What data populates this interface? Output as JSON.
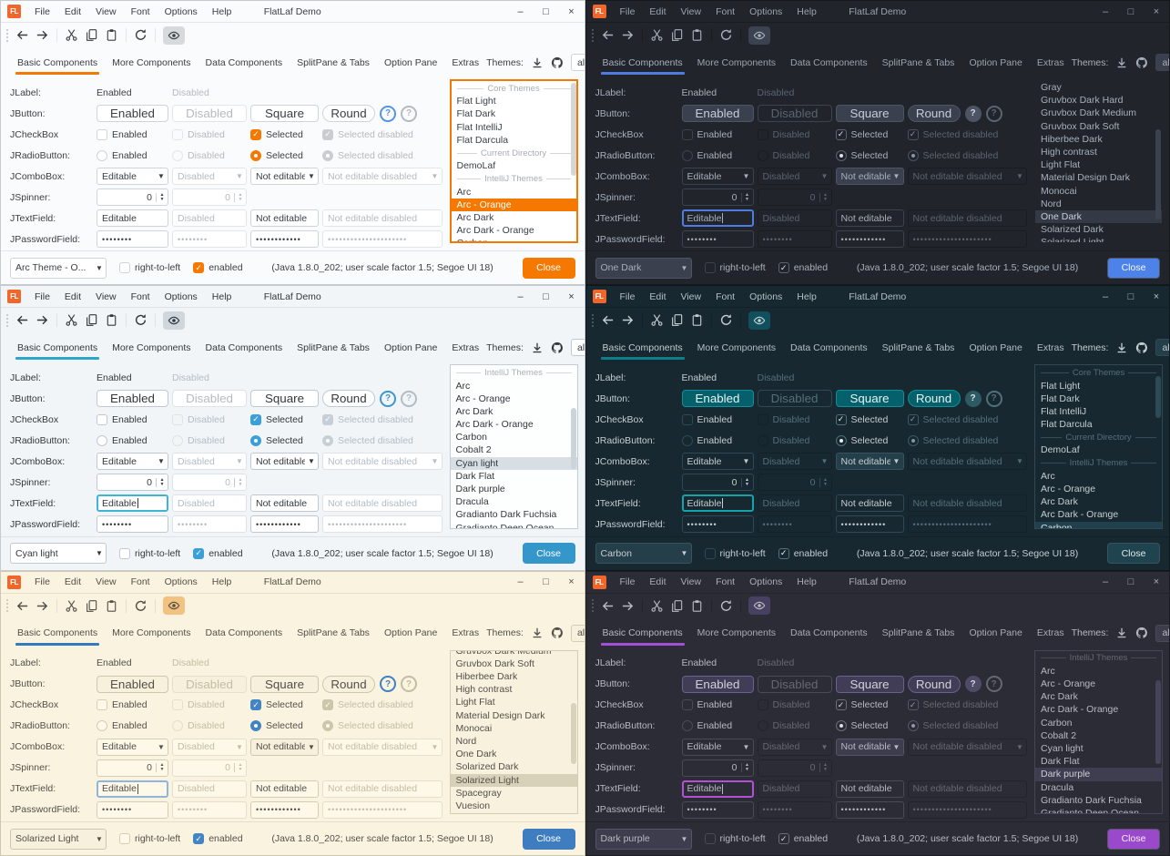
{
  "shared": {
    "logo": "FL",
    "window_title": "FlatLaf Demo",
    "menu": [
      "File",
      "Edit",
      "View",
      "Font",
      "Options",
      "Help"
    ],
    "controls": {
      "minimize": "–",
      "maximize": "□",
      "close": "×"
    },
    "tabs": [
      "Basic Components",
      "More Components",
      "Data Components",
      "SplitPane & Tabs",
      "Option Pane",
      "Extras"
    ],
    "themes_label": "Themes:",
    "filter_value": "all",
    "rows": {
      "jlabel": {
        "label": "JLabel:",
        "enabled": "Enabled",
        "disabled": "Disabled"
      },
      "jbutton": {
        "label": "JButton:",
        "enabled": "Enabled",
        "disabled": "Disabled",
        "square": "Square",
        "round": "Round",
        "help": "?"
      },
      "jcheckbox": {
        "label": "JCheckBox",
        "enabled": "Enabled",
        "disabled": "Disabled",
        "selected": "Selected",
        "selected_disabled": "Selected disabled"
      },
      "jradiobutton": {
        "label": "JRadioButton:",
        "enabled": "Enabled",
        "disabled": "Disabled",
        "selected": "Selected",
        "selected_disabled": "Selected disabled"
      },
      "jcombobox": {
        "label": "JComboBox:",
        "editable": "Editable",
        "disabled": "Disabled",
        "not_editable": "Not editable",
        "not_editable_disabled": "Not editable disabled"
      },
      "jspinner": {
        "label": "JSpinner:",
        "value": "0"
      },
      "jtextfield": {
        "label": "JTextField:",
        "editable": "Editable",
        "disabled": "Disabled",
        "not_editable": "Not editable",
        "not_editable_disabled": "Not editable disabled"
      },
      "jpasswordfield": {
        "label": "JPasswordField:",
        "v1": "••••••••",
        "v2": "••••••••",
        "v3": "••••••••••••",
        "v4": "•••••••••••••••••••••"
      }
    },
    "bottom": {
      "rtl": "right-to-left",
      "enabled": "enabled",
      "status": "(Java 1.8.0_202;  user scale factor 1.5; Segoe UI 18)",
      "close": "Close"
    }
  },
  "windows": [
    {
      "mode": "light",
      "list_focused": true,
      "textfield_focused": false,
      "theme_combo": "Arc Theme - O...",
      "themes_list": [
        {
          "type": "separator",
          "label": "Core Themes"
        },
        {
          "type": "item",
          "label": "Flat Light"
        },
        {
          "type": "item",
          "label": "Flat Dark"
        },
        {
          "type": "item",
          "label": "Flat IntelliJ"
        },
        {
          "type": "item",
          "label": "Flat Darcula"
        },
        {
          "type": "separator",
          "label": "Current Directory"
        },
        {
          "type": "item",
          "label": "DemoLaf"
        },
        {
          "type": "separator",
          "label": "IntelliJ Themes"
        },
        {
          "type": "item",
          "label": "Arc"
        },
        {
          "type": "item",
          "label": "Arc - Orange",
          "selected": true
        },
        {
          "type": "item",
          "label": "Arc Dark"
        },
        {
          "type": "item",
          "label": "Arc Dark - Orange"
        },
        {
          "type": "item",
          "label": "Carbon"
        }
      ],
      "colors": {
        "win-border": "#c8cbce",
        "bg": "#fafbfc",
        "hairline": "#e3e6e8",
        "text": "#3b4045",
        "muted": "#b4bac0",
        "accent": "#f57900",
        "field-bg": "#ffffff",
        "field-border": "#cfd4d9",
        "raised-bg": "#ffffff",
        "raised-border": "#cfd4d9",
        "btn-text": "#3b4045",
        "sel-bg": "#f57900",
        "sel-text": "#ffffff",
        "list-bg": "#ffffff",
        "list-border": "#f57900",
        "close-bg": "#f57900",
        "close-text": "#ffffff",
        "check-bg": "#f57900",
        "check-border": "#f57900",
        "check-mark": "#ffffff",
        "dis-check-bg": "#c9cdd2",
        "dis-check-border": "#c9cdd2",
        "dis-check-mark": "#ffffff",
        "eye-bg": "#d7dadd",
        "tf-focus": "#f57900",
        "help1": "#5294e2",
        "sep-text": "#a8adb3",
        "scroll-thumb": "#d4d7da",
        "title-text": "#3b4045"
      }
    },
    {
      "mode": "dark",
      "list_focused": false,
      "textfield_focused": true,
      "theme_combo": "One Dark",
      "themes_list": [
        {
          "type": "item",
          "label": "Gray"
        },
        {
          "type": "item",
          "label": "Gruvbox Dark Hard"
        },
        {
          "type": "item",
          "label": "Gruvbox Dark Medium"
        },
        {
          "type": "item",
          "label": "Gruvbox Dark Soft"
        },
        {
          "type": "item",
          "label": "Hiberbee Dark"
        },
        {
          "type": "item",
          "label": "High contrast"
        },
        {
          "type": "item",
          "label": "Light Flat"
        },
        {
          "type": "item",
          "label": "Material Design Dark"
        },
        {
          "type": "item",
          "label": "Monocai"
        },
        {
          "type": "item",
          "label": "Nord"
        },
        {
          "type": "item",
          "label": "One Dark",
          "selected": true
        },
        {
          "type": "item",
          "label": "Solarized Dark"
        },
        {
          "type": "item",
          "label": "Solarized Light"
        }
      ],
      "colors": {
        "win-border": "#15181d",
        "bg": "#21252b",
        "hairline": "#191c21",
        "text": "#a7afbc",
        "muted": "#5a6372",
        "accent": "#4e7ce0",
        "field-bg": "#21252b",
        "field-border": "#3b4252",
        "raised-bg": "#3a404d",
        "raised-border": "#4d5565",
        "btn-text": "#c6cdd9",
        "sel-bg": "#333a46",
        "sel-text": "#c9d0dc",
        "list-bg": "#21252b",
        "list-border": "#21252b",
        "close-bg": "#4d82e8",
        "close-text": "#f5f8ff",
        "check-bg": "transparent",
        "check-border": "#5a6372",
        "check-mark": "#dde2ea",
        "dis-check-bg": "transparent",
        "dis-check-border": "#4a5260",
        "dis-check-mark": "#8b94a5",
        "eye-bg": "#3b4250",
        "tf-focus": "#4e7ce0",
        "help1-bg": "#4d5565",
        "help1-fg": "#d6dbe4",
        "sep-text": "#5a6372",
        "scroll-thumb": "#3b4250",
        "title-text": "#9aa2b0"
      }
    },
    {
      "mode": "light",
      "list_focused": false,
      "textfield_focused": true,
      "theme_combo": "Cyan light",
      "themes_list": [
        {
          "type": "separator",
          "label": "IntelliJ Themes"
        },
        {
          "type": "item",
          "label": "Arc"
        },
        {
          "type": "item",
          "label": "Arc - Orange"
        },
        {
          "type": "item",
          "label": "Arc Dark"
        },
        {
          "type": "item",
          "label": "Arc Dark - Orange"
        },
        {
          "type": "item",
          "label": "Carbon"
        },
        {
          "type": "item",
          "label": "Cobalt 2"
        },
        {
          "type": "item",
          "label": "Cyan light",
          "selected": true
        },
        {
          "type": "item",
          "label": "Dark Flat"
        },
        {
          "type": "item",
          "label": "Dark purple"
        },
        {
          "type": "item",
          "label": "Dracula"
        },
        {
          "type": "item",
          "label": "Gradianto Dark Fuchsia"
        },
        {
          "type": "item",
          "label": "Gradianto Deep Ocean"
        }
      ],
      "colors": {
        "win-border": "#c3ccd4",
        "bg": "#f2f5f8",
        "hairline": "#dde3e9",
        "text": "#33383d",
        "muted": "#b2bcc5",
        "accent": "#2ea6c9",
        "field-bg": "#ffffff",
        "field-border": "#bfc9d3",
        "raised-bg": "#ffffff",
        "raised-border": "#bfc9d3",
        "btn-text": "#33383d",
        "sel-bg": "#d7dee4",
        "sel-text": "#33383d",
        "list-bg": "#fdfefe",
        "list-border": "#c3cdd6",
        "close-bg": "#3496c9",
        "close-text": "#ffffff",
        "check-bg": "#3b9fd9",
        "check-border": "#3b9fd9",
        "check-mark": "#ffffff",
        "dis-check-bg": "#c6cfd7",
        "dis-check-border": "#c6cfd7",
        "dis-check-mark": "#ffffff",
        "eye-bg": "#cfd6dc",
        "tf-focus": "#40b4d6",
        "help1": "#3f96cf",
        "sep-text": "#a9b2bb",
        "scroll-thumb": "#ccd4db",
        "title-text": "#33383d"
      }
    },
    {
      "mode": "dark",
      "list_focused": false,
      "textfield_focused": true,
      "theme_combo": "Carbon",
      "themes_list": [
        {
          "type": "separator",
          "label": "Core Themes"
        },
        {
          "type": "item",
          "label": "Flat Light"
        },
        {
          "type": "item",
          "label": "Flat Dark"
        },
        {
          "type": "item",
          "label": "Flat IntelliJ"
        },
        {
          "type": "item",
          "label": "Flat Darcula"
        },
        {
          "type": "separator",
          "label": "Current Directory"
        },
        {
          "type": "item",
          "label": "DemoLaf"
        },
        {
          "type": "separator",
          "label": "IntelliJ Themes"
        },
        {
          "type": "item",
          "label": "Arc"
        },
        {
          "type": "item",
          "label": "Arc - Orange"
        },
        {
          "type": "item",
          "label": "Arc Dark"
        },
        {
          "type": "item",
          "label": "Arc Dark - Orange"
        },
        {
          "type": "item",
          "label": "Carbon",
          "selected": true
        }
      ],
      "colors": {
        "win-border": "#0d181e",
        "bg": "#182830",
        "hairline": "#12222a",
        "text": "#c4cdd1",
        "muted": "#527078",
        "accent": "#0c7f89",
        "field-bg": "#182830",
        "field-border": "#2d4a55",
        "raised-bg": "#253f4a",
        "raised-border": "#35545f",
        "btn-text": "#e8f2f2",
        "btn-bg": "#04616b",
        "btn-border": "#0f8f99",
        "sel-bg": "#21404d",
        "sel-text": "#d9e4e7",
        "list-bg": "#182830",
        "list-border": "#2d4a55",
        "close-bg": "#1f4450",
        "close-text": "#dfe9ea",
        "check-bg": "transparent",
        "check-border": "#527078",
        "check-mark": "#e8f2f2",
        "dis-check-bg": "transparent",
        "dis-check-border": "#3c5a66",
        "dis-check-mark": "#7f99a3",
        "eye-bg": "#10505c",
        "tf-focus": "#14a2ab",
        "help1-bg": "#2e5a64",
        "help1-fg": "#d4e5e7",
        "sep-text": "#527078",
        "scroll-thumb": "#2d4a55",
        "title-text": "#b3bfc4"
      }
    },
    {
      "mode": "light",
      "list_focused": false,
      "textfield_focused": true,
      "theme_combo": "Solarized Light",
      "themes_list": [
        {
          "type": "item",
          "label": "Gruvbox Dark Medium"
        },
        {
          "type": "item",
          "label": "Gruvbox Dark Soft"
        },
        {
          "type": "item",
          "label": "Hiberbee Dark"
        },
        {
          "type": "item",
          "label": "High contrast"
        },
        {
          "type": "item",
          "label": "Light Flat"
        },
        {
          "type": "item",
          "label": "Material Design Dark"
        },
        {
          "type": "item",
          "label": "Monocai"
        },
        {
          "type": "item",
          "label": "Nord"
        },
        {
          "type": "item",
          "label": "One Dark"
        },
        {
          "type": "item",
          "label": "Solarized Dark"
        },
        {
          "type": "item",
          "label": "Solarized Light",
          "selected": true
        },
        {
          "type": "item",
          "label": "Spacegray"
        },
        {
          "type": "item",
          "label": "Vuesion"
        }
      ],
      "colors": {
        "win-border": "#cfc8ad",
        "bg": "#faf3e0",
        "hairline": "#e5decb",
        "text": "#53504a",
        "muted": "#c3bda3",
        "accent": "#337bbf",
        "field-bg": "#fdf8e8",
        "field-border": "#d5cdb2",
        "raised-bg": "#f7f0dc",
        "raised-border": "#cfc7ab",
        "btn-text": "#53504a",
        "sel-bg": "#d7d1ba",
        "sel-text": "#53504a",
        "list-bg": "#f8f1de",
        "list-border": "#d5cdb2",
        "close-bg": "#3d7dc0",
        "close-text": "#ffffff",
        "check-bg": "#4284c4",
        "check-border": "#4284c4",
        "check-mark": "#ffffff",
        "dis-check-bg": "#cdc6ab",
        "dis-check-border": "#cdc6ab",
        "dis-check-mark": "#fffdf0",
        "eye-bg": "#f2c380",
        "tf-focus": "#8fb5da",
        "help1": "#3f81c4",
        "sep-text": "#b5ae90",
        "scroll-thumb": "#d8d2bb",
        "title-text": "#53504a"
      }
    },
    {
      "mode": "dark",
      "list_focused": false,
      "textfield_focused": true,
      "theme_combo": "Dark purple",
      "themes_list": [
        {
          "type": "separator",
          "label": "IntelliJ Themes"
        },
        {
          "type": "item",
          "label": "Arc"
        },
        {
          "type": "item",
          "label": "Arc - Orange"
        },
        {
          "type": "item",
          "label": "Arc Dark"
        },
        {
          "type": "item",
          "label": "Arc Dark - Orange"
        },
        {
          "type": "item",
          "label": "Carbon"
        },
        {
          "type": "item",
          "label": "Cobalt 2"
        },
        {
          "type": "item",
          "label": "Cyan light"
        },
        {
          "type": "item",
          "label": "Dark Flat"
        },
        {
          "type": "item",
          "label": "Dark purple",
          "selected": true
        },
        {
          "type": "item",
          "label": "Dracula"
        },
        {
          "type": "item",
          "label": "Gradianto Dark Fuchsia"
        },
        {
          "type": "item",
          "label": "Gradianto Deep Ocean"
        }
      ],
      "colors": {
        "win-border": "#1c1c24",
        "bg": "#2c2c37",
        "hairline": "#23232c",
        "text": "#b8b8c2",
        "muted": "#67676f",
        "accent": "#a44fd8",
        "field-bg": "#2c2c37",
        "field-border": "#4a4a5a",
        "raised-bg": "#3d3d4d",
        "raised-border": "#55556a",
        "btn-text": "#d2d2da",
        "btn-bg": "#413d56",
        "btn-border": "#6c5f91",
        "sel-bg": "#3e3e50",
        "sel-text": "#cdcdd6",
        "list-bg": "#2c2c37",
        "list-border": "#45455a",
        "close-bg": "#9a49cb",
        "close-text": "#f6edfc",
        "check-bg": "transparent",
        "check-border": "#6c6c7a",
        "check-mark": "#dcdce4",
        "dis-check-bg": "transparent",
        "dis-check-border": "#55556a",
        "dis-check-mark": "#9595a5",
        "eye-bg": "#484060",
        "tf-focus": "#b44fd8",
        "help1-bg": "#4f4a66",
        "help1-fg": "#d6d6de",
        "sep-text": "#67676f",
        "scroll-thumb": "#45455a",
        "title-text": "#ababb6"
      }
    }
  ]
}
